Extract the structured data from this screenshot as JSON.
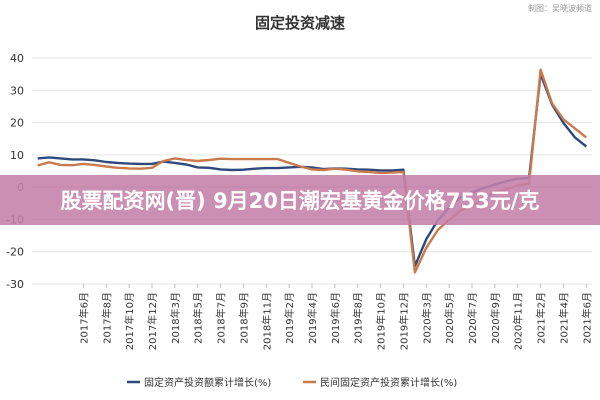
{
  "overlay_headline": "股票配资网(晋) 9月20日潮宏基黄金价格753元/克",
  "credit": "制图：吴晓波频道",
  "colors": {
    "series1": "#2e4a7d",
    "series2": "#c97b4d",
    "banner": "#c480aa",
    "grid": "#e6e6e6"
  },
  "chart_data": {
    "type": "line",
    "title": "固定投资减速",
    "ylim": [
      -30,
      40
    ],
    "yticks": [
      -30,
      -20,
      -10,
      0,
      10,
      20,
      30,
      40
    ],
    "grid": "horizontal",
    "legend_position": "bottom",
    "x": [
      "2017年2月",
      "2017年3月",
      "2017年4月",
      "2017年5月",
      "2017年6月",
      "2017年7月",
      "2017年8月",
      "2017年9月",
      "2017年10月",
      "2017年11月",
      "2017年12月",
      "2018年2月",
      "2018年3月",
      "2018年4月",
      "2018年5月",
      "2018年6月",
      "2018年7月",
      "2018年8月",
      "2018年9月",
      "2018年10月",
      "2018年11月",
      "2018年12月",
      "2019年2月",
      "2019年3月",
      "2019年4月",
      "2019年5月",
      "2019年6月",
      "2019年7月",
      "2019年8月",
      "2019年9月",
      "2019年10月",
      "2019年11月",
      "2019年12月",
      "2020年2月",
      "2020年3月",
      "2020年4月",
      "2020年5月",
      "2020年6月",
      "2020年7月",
      "2020年8月",
      "2020年9月",
      "2020年10月",
      "2020年11月",
      "2020年12月",
      "2021年2月",
      "2021年3月",
      "2021年4月",
      "2021年5月",
      "2021年6月"
    ],
    "xtick_labels": [
      "2017年6月",
      "2017年8月",
      "2017年10月",
      "2017年12月",
      "2018年3月",
      "2018年5月",
      "2018年7月",
      "2018年9月",
      "2018年11月",
      "2019年2月",
      "2019年4月",
      "2019年6月",
      "2019年8月",
      "2019年10月",
      "2019年12月",
      "2020年3月",
      "2020年5月",
      "2020年7月",
      "2020年9月",
      "2020年11月",
      "2021年2月",
      "2021年4月",
      "2021年6月"
    ],
    "series": [
      {
        "name": "固定资产投资额累计增长(%)",
        "values": [
          8.9,
          9.2,
          8.9,
          8.6,
          8.6,
          8.3,
          7.8,
          7.5,
          7.3,
          7.2,
          7.2,
          7.9,
          7.5,
          7.0,
          6.1,
          6.0,
          5.5,
          5.3,
          5.4,
          5.7,
          5.9,
          5.9,
          6.1,
          6.3,
          6.1,
          5.6,
          5.8,
          5.7,
          5.5,
          5.4,
          5.2,
          5.2,
          5.4,
          -24.5,
          -16.1,
          -10.3,
          -6.3,
          -3.1,
          -1.6,
          -0.3,
          0.8,
          1.8,
          2.6,
          2.9,
          35.0,
          25.6,
          19.9,
          15.4,
          12.6
        ]
      },
      {
        "name": "民间固定资产投资累计增长(%)",
        "values": [
          6.7,
          7.7,
          6.9,
          6.8,
          7.2,
          6.9,
          6.4,
          6.0,
          5.8,
          5.7,
          6.0,
          8.1,
          8.9,
          8.4,
          8.1,
          8.4,
          8.8,
          8.7,
          8.7,
          8.7,
          8.7,
          8.7,
          7.5,
          6.4,
          5.5,
          5.3,
          5.7,
          5.4,
          4.9,
          4.7,
          4.4,
          4.5,
          4.7,
          -26.4,
          -18.8,
          -13.3,
          -10.1,
          -7.3,
          -5.7,
          -3.8,
          -1.5,
          -0.7,
          0.6,
          1.0,
          36.4,
          26.0,
          21.0,
          18.2,
          15.4
        ]
      }
    ]
  }
}
